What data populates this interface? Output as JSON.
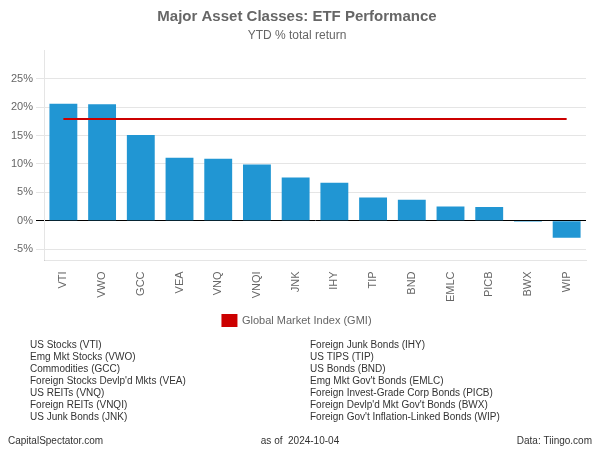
{
  "chart_data": {
    "type": "bar",
    "title": "Major Asset Classes: ETF Performance",
    "subtitle": "YTD % total return",
    "categories": [
      "VTI",
      "VWO",
      "GCC",
      "VEA",
      "VNQ",
      "VNQI",
      "JNK",
      "IHY",
      "TIP",
      "BND",
      "EMLC",
      "PICB",
      "BWX",
      "WIP"
    ],
    "values": [
      20.6,
      20.5,
      15.1,
      11.1,
      10.9,
      9.9,
      7.6,
      6.7,
      4.1,
      3.7,
      2.5,
      2.4,
      -0.2,
      -3.0
    ],
    "color": "#2196d3",
    "reference_lines": [
      {
        "name": "Global Market Index (GMI)",
        "value": 17.9,
        "color": "#cc0000"
      }
    ],
    "ylim": [
      -7,
      30
    ],
    "yticks": [
      {
        "value": -5,
        "label": "-5%"
      },
      {
        "value": 0,
        "label": "0%"
      },
      {
        "value": 5,
        "label": "5%"
      },
      {
        "value": 10,
        "label": "10%"
      },
      {
        "value": 15,
        "label": "15%"
      },
      {
        "value": 20,
        "label": "20%"
      },
      {
        "value": 25,
        "label": "25%"
      }
    ],
    "grid": true,
    "legend": "bottom",
    "annotations": [
      "US Stocks (VTI)",
      "Emg Mkt Stocks (VWO)",
      "Commodities (GCC)",
      "Foreign Stocks Devlp'd Mkts (VEA)",
      "US REITs (VNQ)",
      "Foreign REITs (VNQI)",
      "US Junk Bonds (JNK)",
      "Foreign Junk Bonds (IHY)",
      "US TIPS (TIP)",
      "US Bonds (BND)",
      "Emg Mkt Gov't Bonds (EMLC)",
      "Foreign Invest-Grade Corp Bonds (PICB)",
      "Foreign Devlp'd Mkt Gov't Bonds (BWX)",
      "Foreign Gov't Inflation-Linked Bonds (WIP)"
    ],
    "footer": [
      "CapitalSpectator.com",
      "as of  2024-10-04",
      "Data: Tiingo.com"
    ]
  }
}
